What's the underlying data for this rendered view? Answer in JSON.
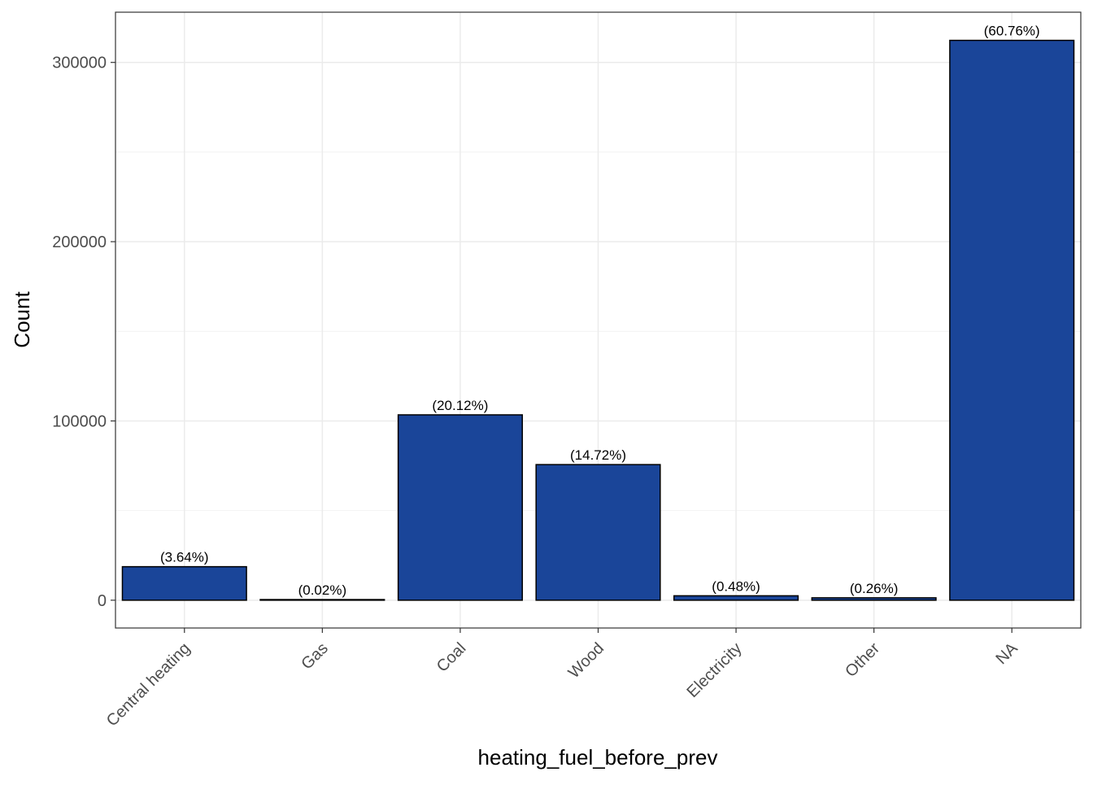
{
  "chart_data": {
    "type": "bar",
    "title": "",
    "xlabel": "heating_fuel_before_prev",
    "ylabel": "Count",
    "categories": [
      "Central heating",
      "Gas",
      "Coal",
      "Wood",
      "Electricity",
      "Other",
      "NA"
    ],
    "values": [
      18700,
      100,
      103400,
      75650,
      2470,
      1340,
      312300
    ],
    "labels": [
      "(3.64%)",
      "(0.02%)",
      "(20.12%)",
      "(14.72%)",
      "(0.48%)",
      "(0.26%)",
      "(60.76%)"
    ],
    "y_ticks": [
      0,
      100000,
      200000,
      300000
    ],
    "y_tick_labels": [
      "0",
      "100000",
      "200000",
      "300000"
    ],
    "ylim": [
      -15500,
      328000
    ],
    "grid": true,
    "legend": "none",
    "colors": {
      "bar_fill": "#1a4599",
      "bar_stroke": "#000000",
      "grid_major": "#ebebeb",
      "grid_minor": "#f2f2f2",
      "panel_border": "#333333",
      "tick_text": "#4d4d4d"
    }
  }
}
